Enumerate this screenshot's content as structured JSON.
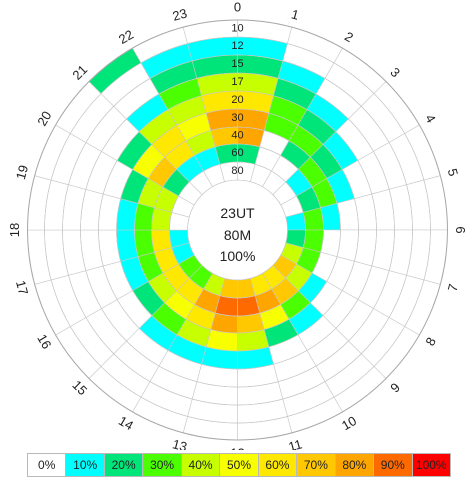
{
  "chart_data": {
    "type": "heatmap",
    "subtype": "polar",
    "center_text": [
      "23UT",
      "80M",
      "100%"
    ],
    "hours": [
      "0",
      "1",
      "2",
      "3",
      "4",
      "5",
      "6",
      "7",
      "8",
      "9",
      "10",
      "11",
      "12",
      "13",
      "14",
      "15",
      "16",
      "17",
      "18",
      "19",
      "20",
      "21",
      "22",
      "23"
    ],
    "rings": [
      "10",
      "12",
      "15",
      "17",
      "20",
      "30",
      "40",
      "60",
      "80"
    ],
    "ring_labels_shown": [
      "10",
      "12",
      "15",
      "17",
      "20",
      "30",
      "40",
      "60",
      "80"
    ],
    "color_scale": [
      {
        "label": "0%",
        "color": "#ffffff"
      },
      {
        "label": "10%",
        "color": "#00ffff"
      },
      {
        "label": "20%",
        "color": "#00e57a"
      },
      {
        "label": "30%",
        "color": "#4cff00"
      },
      {
        "label": "40%",
        "color": "#c8ff00"
      },
      {
        "label": "50%",
        "color": "#f8ff00"
      },
      {
        "label": "60%",
        "color": "#ffe800"
      },
      {
        "label": "70%",
        "color": "#ffc800"
      },
      {
        "label": "80%",
        "color": "#ffa500"
      },
      {
        "label": "90%",
        "color": "#ff6a00"
      },
      {
        "label": "100%",
        "color": "#ff0000"
      }
    ],
    "values": [
      [
        0,
        1,
        2,
        4,
        6,
        8,
        8,
        2,
        0
      ],
      [
        0,
        0,
        1,
        2,
        3,
        3,
        0,
        0,
        0
      ],
      [
        0,
        0,
        0,
        1,
        2,
        3,
        2,
        0,
        0
      ],
      [
        0,
        0,
        0,
        0,
        1,
        2,
        3,
        1,
        0
      ],
      [
        0,
        0,
        0,
        0,
        0,
        1,
        3,
        2,
        0
      ],
      [
        0,
        0,
        0,
        0,
        0,
        0,
        1,
        3,
        1
      ],
      [
        0,
        0,
        0,
        0,
        0,
        0,
        0,
        3,
        2
      ],
      [
        0,
        0,
        0,
        0,
        0,
        0,
        0,
        3,
        4
      ],
      [
        0,
        0,
        0,
        0,
        0,
        0,
        1,
        4,
        7
      ],
      [
        0,
        0,
        0,
        0,
        0,
        1,
        3,
        7,
        6
      ],
      [
        0,
        0,
        0,
        0,
        0,
        2,
        5,
        8,
        6
      ],
      [
        0,
        0,
        0,
        0,
        1,
        4,
        7,
        9,
        7
      ],
      [
        0,
        0,
        0,
        0,
        1,
        5,
        8,
        9,
        7
      ],
      [
        0,
        0,
        0,
        0,
        1,
        4,
        6,
        8,
        4
      ],
      [
        0,
        0,
        0,
        0,
        1,
        3,
        5,
        6,
        3
      ],
      [
        0,
        0,
        0,
        0,
        0,
        2,
        4,
        6,
        3
      ],
      [
        0,
        0,
        0,
        0,
        0,
        1,
        3,
        6,
        1
      ],
      [
        0,
        0,
        0,
        0,
        0,
        1,
        3,
        6,
        1
      ],
      [
        0,
        0,
        0,
        0,
        0,
        1,
        3,
        4,
        0
      ],
      [
        0,
        0,
        0,
        0,
        0,
        2,
        4,
        4,
        0
      ],
      [
        0,
        0,
        0,
        0,
        2,
        5,
        7,
        2,
        0
      ],
      [
        2,
        0,
        0,
        1,
        4,
        6,
        6,
        1,
        0
      ],
      [
        0,
        1,
        2,
        3,
        4,
        5,
        4,
        1,
        0
      ],
      [
        0,
        1,
        2,
        4,
        6,
        8,
        7,
        2,
        0
      ]
    ]
  }
}
